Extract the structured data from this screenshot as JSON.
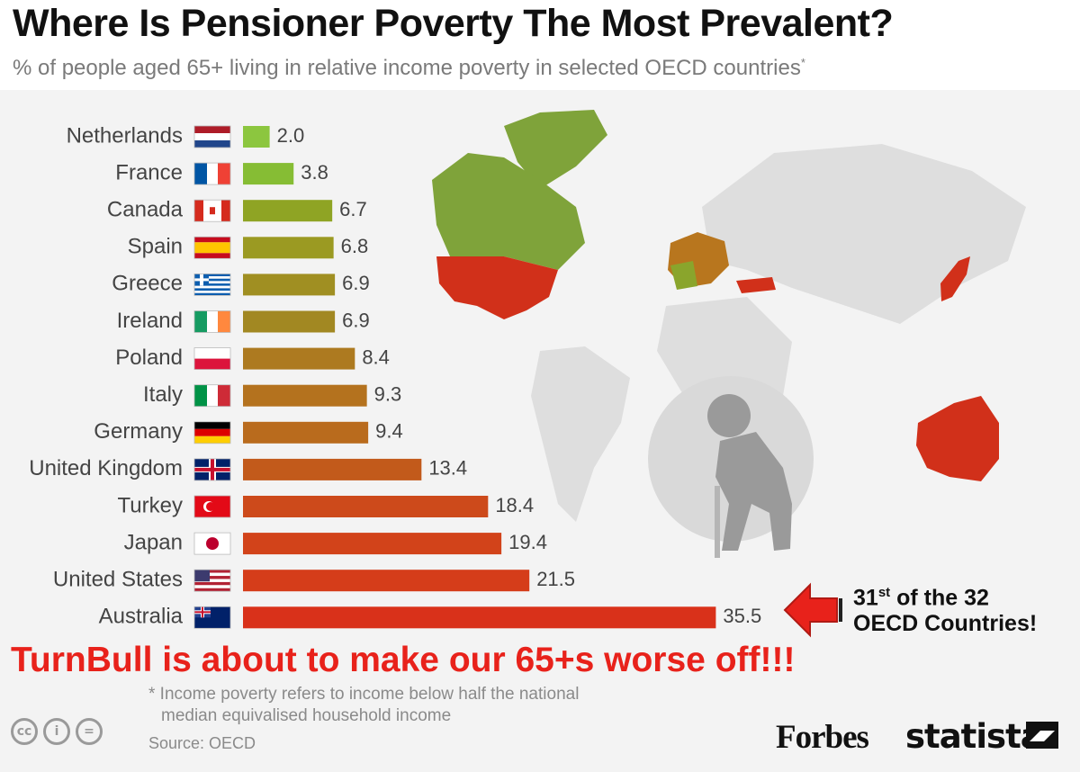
{
  "title": "Where Is Pensioner Poverty The Most Prevalent?",
  "subtitle": "% of people aged 65+ living in relative income poverty in selected OECD countries",
  "subtitle_mark": "*",
  "chart_data": {
    "type": "bar",
    "orientation": "horizontal",
    "title": "Where Is Pensioner Poverty The Most Prevalent?",
    "categories": [
      "Netherlands",
      "France",
      "Canada",
      "Spain",
      "Greece",
      "Ireland",
      "Poland",
      "Italy",
      "Germany",
      "United Kingdom",
      "Turkey",
      "Japan",
      "United States",
      "Australia"
    ],
    "values": [
      2.0,
      3.8,
      6.7,
      6.8,
      6.9,
      6.9,
      8.4,
      9.3,
      9.4,
      13.4,
      18.4,
      19.4,
      21.5,
      35.5
    ],
    "value_labels": [
      "2.0",
      "3.8",
      "6.7",
      "6.8",
      "6.9",
      "6.9",
      "8.4",
      "9.3",
      "9.4",
      "13.4",
      "18.4",
      "19.4",
      "21.5",
      "35.5"
    ],
    "bar_colors": [
      "#8cc63f",
      "#86bd34",
      "#8fa424",
      "#9b9a22",
      "#a08f22",
      "#a28822",
      "#ad7a20",
      "#b4721e",
      "#b96b1d",
      "#c25a1b",
      "#cd4a1b",
      "#d2431a",
      "#d53d1a",
      "#d9311a"
    ],
    "map_colors": {
      "low": "#7fa33a",
      "high": "#d1301a",
      "base": "#dedede"
    },
    "grid": false,
    "legend": "none"
  },
  "callout": {
    "rank_number": "31",
    "rank_suffix": "st",
    "rank_rest": " of the 32",
    "line2": "OECD Countries!",
    "arrow_color": "#e8221b"
  },
  "headline": "TurnBull is about to make our 65+s worse off!!!",
  "footnote_line1": "* Income poverty refers to income below half the national",
  "footnote_line2": "median equivalised household income",
  "source": "Source: OECD",
  "brand_forbes": "Forbes",
  "brand_statista": "statista",
  "license_icons": [
    "cc-icon",
    "attribution-icon",
    "no-derivatives-icon"
  ],
  "license_labels": [
    "cc",
    "i",
    "="
  ]
}
